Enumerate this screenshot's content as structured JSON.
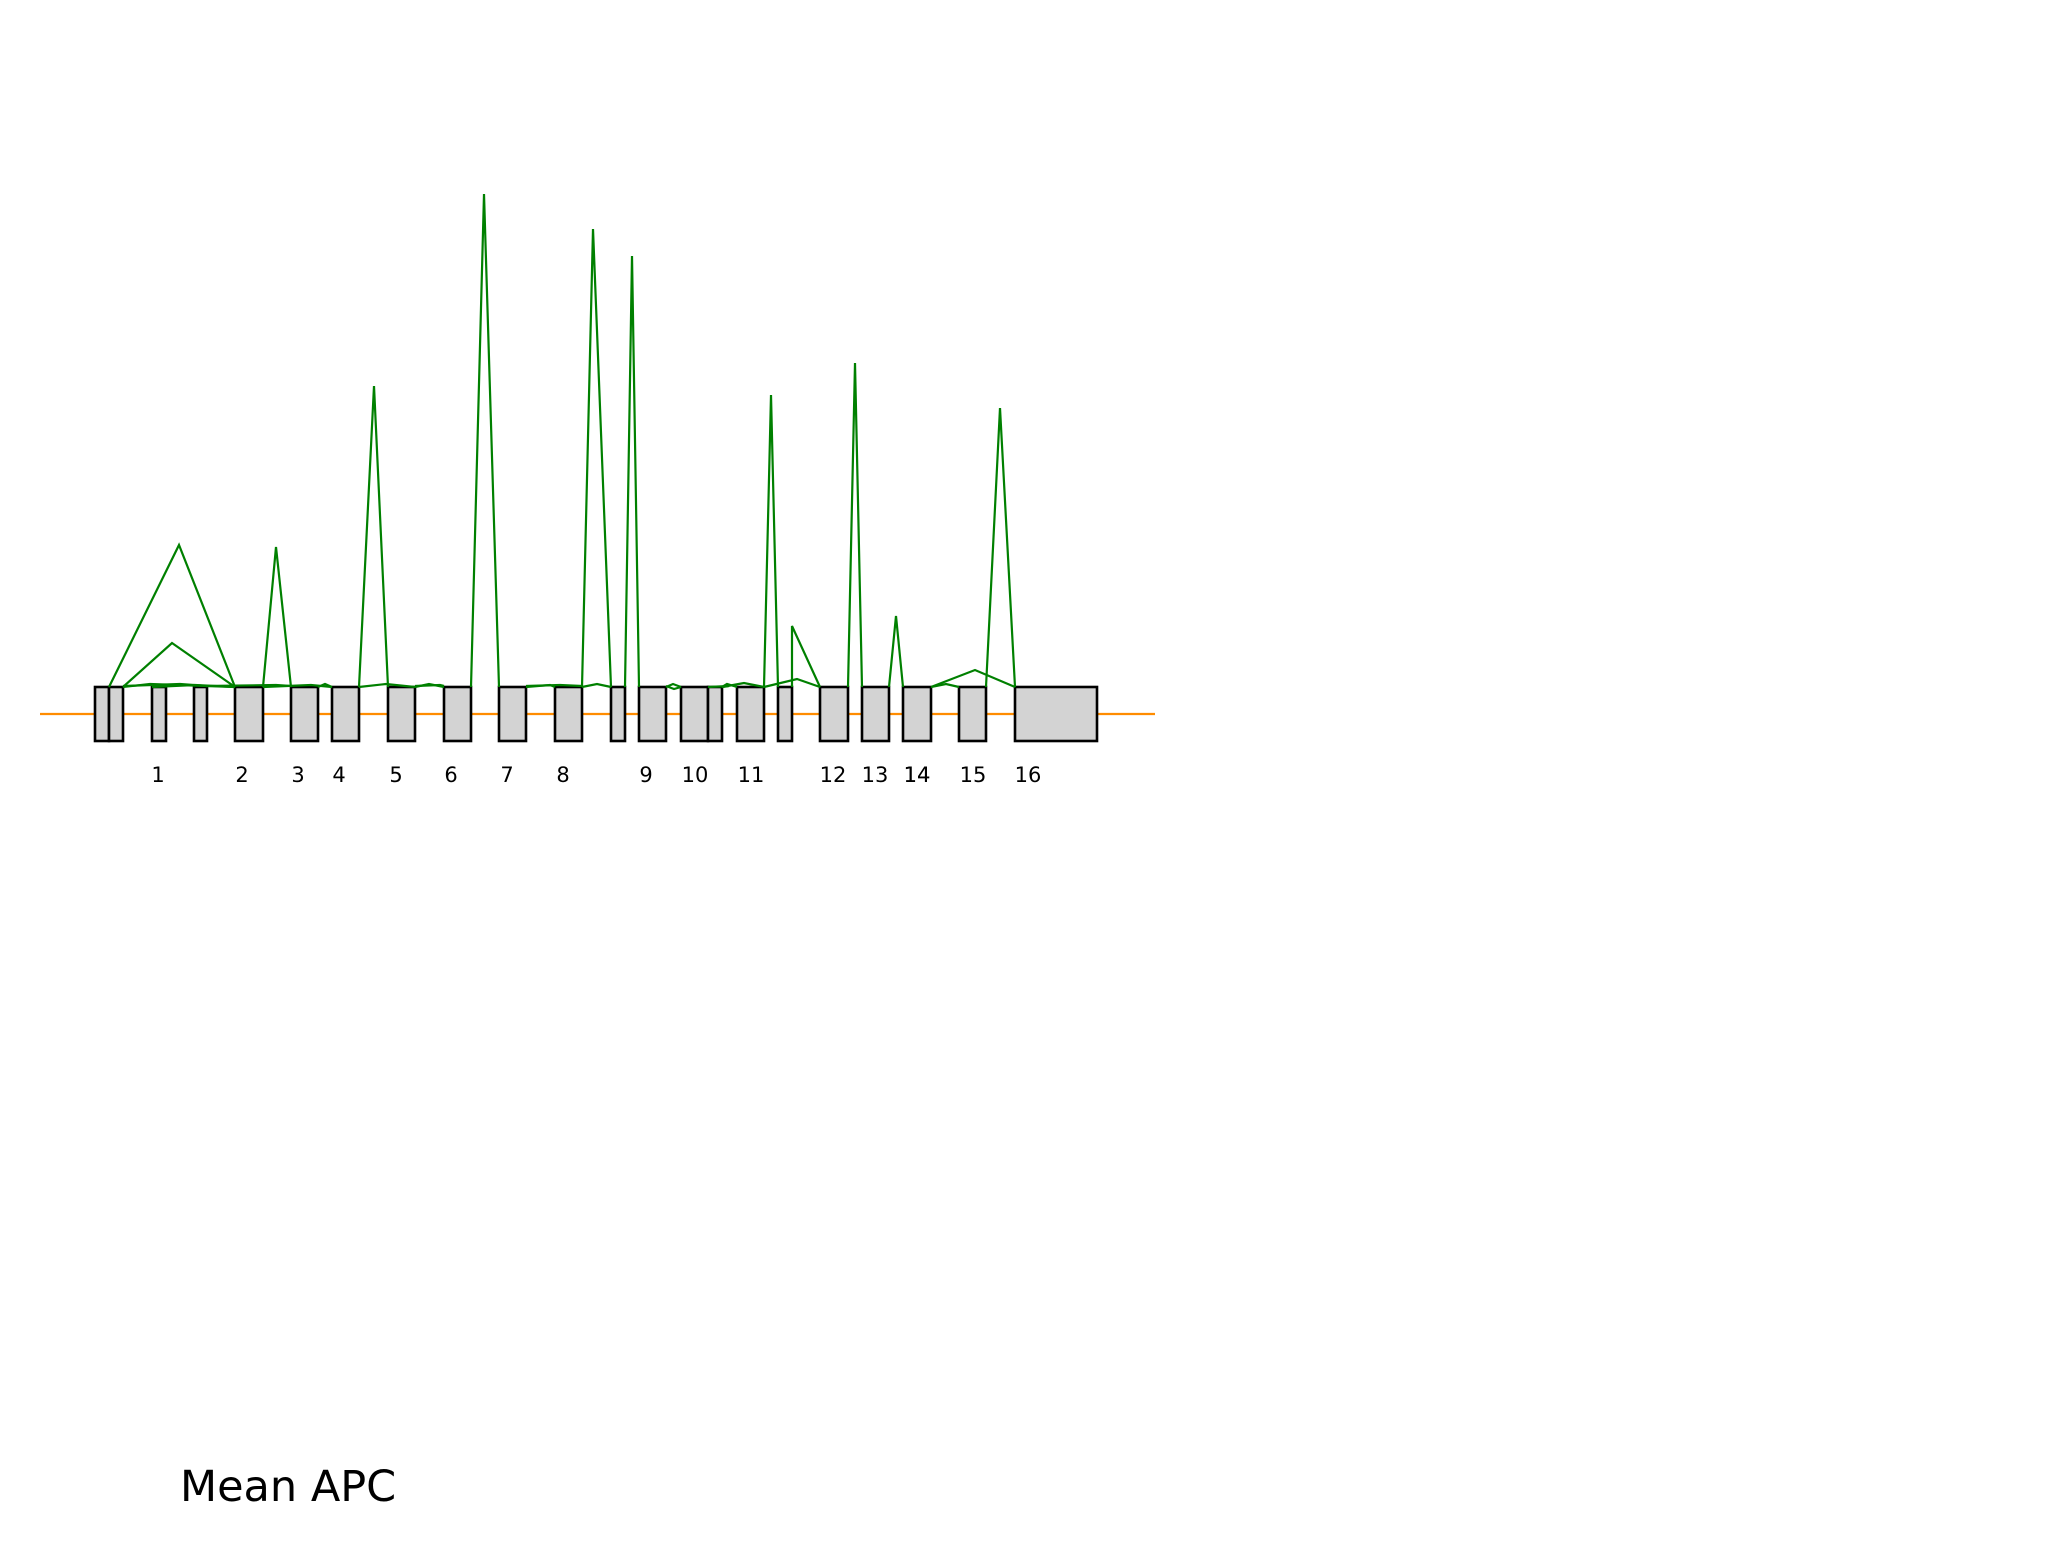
{
  "caption": "Mean APC",
  "colors": {
    "backbone": "#ff8c00",
    "junction": "#008000",
    "exon_fill": "#d3d3d3",
    "exon_stroke": "#000000"
  },
  "exon_labels": [
    "1",
    "2",
    "3",
    "4",
    "5",
    "6",
    "7",
    "8",
    "9",
    "10",
    "11",
    "12",
    "13",
    "14",
    "14",
    "15",
    "16"
  ]
}
